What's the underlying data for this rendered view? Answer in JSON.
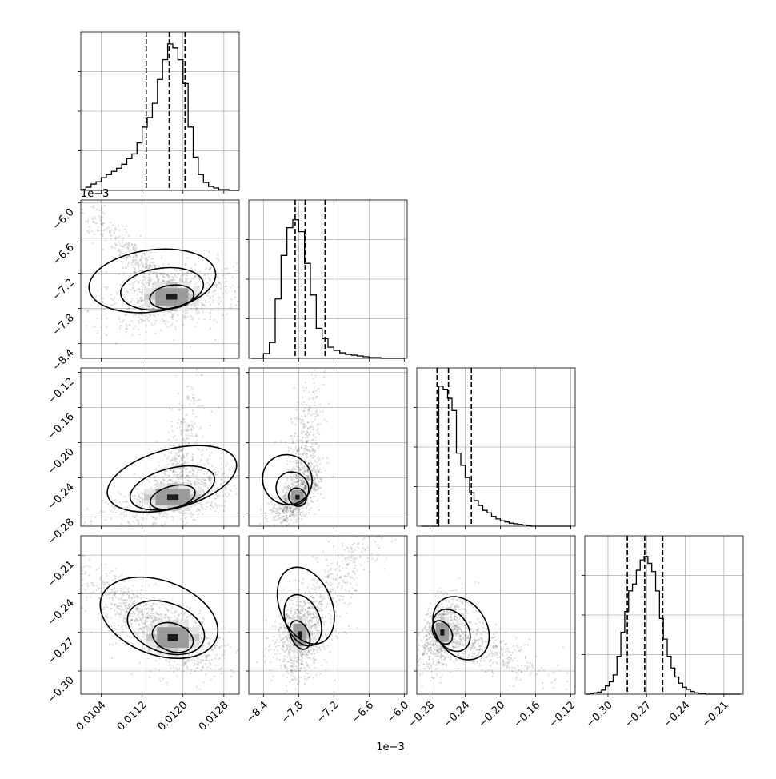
{
  "chart_data": {
    "type": "corner",
    "parameters": [
      {
        "range": [
          0.01,
          0.0131
        ],
        "ticks": [
          0.0104,
          0.0112,
          0.012,
          0.0128
        ],
        "tick_labels": [
          "0.0104",
          "0.0112",
          "0.0120",
          "0.0128"
        ],
        "quantiles": [
          0.01128,
          0.01173,
          0.01204
        ]
      },
      {
        "range": [
          -8.65,
          -5.95
        ],
        "ticks": [
          -8.4,
          -7.8,
          -7.2,
          -6.6,
          -6.0
        ],
        "tick_labels": [
          "−8.4",
          "−7.8",
          "−7.2",
          "−6.6",
          "−6.0"
        ],
        "offset_label": "1e−3",
        "quantiles": [
          -7.86,
          -7.69,
          -7.35
        ]
      },
      {
        "range": [
          -0.295,
          -0.115
        ],
        "ticks": [
          -0.28,
          -0.24,
          -0.2,
          -0.16,
          -0.12
        ],
        "tick_labels": [
          "−0.28",
          "−0.24",
          "−0.20",
          "−0.16",
          "−0.12"
        ],
        "quantiles": [
          -0.272,
          -0.259,
          -0.233
        ]
      },
      {
        "range": [
          -0.318,
          -0.195
        ],
        "ticks": [
          -0.3,
          -0.27,
          -0.24,
          -0.21
        ],
        "tick_labels": [
          "−0.30",
          "−0.27",
          "−0.24",
          "−0.21"
        ],
        "quantiles": [
          -0.285,
          -0.2715,
          -0.2575
        ]
      }
    ],
    "histograms": [
      {
        "param": 0,
        "bin_edges": [
          0.01,
          0.0101,
          0.0102,
          0.0103,
          0.0104,
          0.0105,
          0.0106,
          0.0107,
          0.0108,
          0.0109,
          0.011,
          0.0111,
          0.0112,
          0.0113,
          0.0114,
          0.0115,
          0.0116,
          0.0117,
          0.0118,
          0.0119,
          0.012,
          0.0121,
          0.0122,
          0.0123,
          0.0124,
          0.0125,
          0.0126,
          0.0127,
          0.0128,
          0.0129,
          0.013,
          0.0131
        ],
        "counts": [
          1,
          4,
          8,
          11,
          16,
          20,
          24,
          28,
          33,
          40,
          46,
          60,
          80,
          92,
          110,
          140,
          165,
          185,
          180,
          165,
          135,
          80,
          42,
          20,
          10,
          5,
          3,
          1,
          1,
          0,
          0
        ],
        "ymax": 200
      },
      {
        "param": 1,
        "bin_edges": [
          -8.6,
          -8.5,
          -8.4,
          -8.3,
          -8.2,
          -8.1,
          -8.0,
          -7.9,
          -7.8,
          -7.7,
          -7.6,
          -7.5,
          -7.4,
          -7.3,
          -7.2,
          -7.1,
          -7.0,
          -6.9,
          -6.8,
          -6.7,
          -6.6,
          -6.5,
          -6.4,
          -6.3,
          -6.2,
          -6.1,
          -6.0
        ],
        "counts": [
          0,
          0,
          6,
          20,
          75,
          130,
          165,
          175,
          160,
          120,
          80,
          38,
          25,
          14,
          10,
          7,
          5,
          4,
          3,
          2,
          1,
          1,
          0,
          0,
          0,
          0
        ],
        "ymax": 200
      },
      {
        "param": 2,
        "bin_edges": [
          -0.29,
          -0.285,
          -0.28,
          -0.275,
          -0.27,
          -0.265,
          -0.26,
          -0.255,
          -0.25,
          -0.245,
          -0.24,
          -0.235,
          -0.23,
          -0.225,
          -0.22,
          -0.215,
          -0.21,
          -0.205,
          -0.2,
          -0.195,
          -0.19,
          -0.185,
          -0.18,
          -0.175,
          -0.17,
          -0.165,
          -0.16,
          -0.155,
          -0.15,
          -0.145,
          -0.14,
          -0.135,
          -0.13,
          -0.125,
          -0.12
        ],
        "counts": [
          0,
          0,
          0,
          0,
          230,
          225,
          210,
          190,
          120,
          100,
          80,
          55,
          42,
          34,
          26,
          22,
          16,
          12,
          9,
          7,
          5,
          4,
          3,
          2,
          1,
          0,
          0,
          0,
          0,
          0,
          0,
          0,
          0,
          0
        ],
        "ymax": 260
      },
      {
        "param": 3,
        "bin_edges": [
          -0.317,
          -0.314,
          -0.311,
          -0.308,
          -0.305,
          -0.302,
          -0.299,
          -0.296,
          -0.293,
          -0.29,
          -0.287,
          -0.284,
          -0.281,
          -0.278,
          -0.275,
          -0.272,
          -0.269,
          -0.266,
          -0.263,
          -0.26,
          -0.257,
          -0.254,
          -0.251,
          -0.248,
          -0.245,
          -0.242,
          -0.239,
          -0.236,
          -0.233,
          -0.23,
          -0.227,
          -0.224,
          -0.221,
          -0.218,
          -0.215,
          -0.212,
          -0.209,
          -0.206,
          -0.203,
          -0.2,
          -0.197
        ],
        "counts": [
          0,
          1,
          2,
          3,
          6,
          12,
          18,
          28,
          55,
          90,
          120,
          150,
          160,
          180,
          195,
          200,
          190,
          178,
          150,
          110,
          80,
          55,
          38,
          25,
          16,
          10,
          7,
          4,
          2,
          1,
          1,
          0,
          0,
          0,
          0,
          0,
          0,
          0,
          0,
          0
        ],
        "ymax": 230
      }
    ],
    "contour_panels": [
      {
        "row": 1,
        "col": 0,
        "peak": [
          0.01178,
          -7.6
        ],
        "spread": [
          0.00048,
          0.22
        ],
        "rho": 0.25,
        "tail": {
          "dir": [
            -0.0014,
            1.3
          ],
          "len": 1.0,
          "width": [
            0.00018,
            0.1
          ]
        }
      },
      {
        "row": 2,
        "col": 0,
        "peak": [
          0.0118,
          -0.262
        ],
        "spread": [
          0.0005,
          0.014
        ],
        "rho": 0.55,
        "tail": {
          "dir": [
            0.00032,
            0.085
          ],
          "len": 1.0,
          "width": [
            0.0002,
            0.012
          ]
        }
      },
      {
        "row": 2,
        "col": 1,
        "peak": [
          -7.82,
          -0.262
        ],
        "spread": [
          0.16,
          0.012
        ],
        "rho": 0.7,
        "tail": {
          "dir": [
            0.2,
            0.095
          ],
          "len": 1.0,
          "width": [
            0.14,
            0.014
          ]
        }
      },
      {
        "row": 3,
        "col": 0,
        "peak": [
          0.0118,
          -0.274
        ],
        "spread": [
          0.00046,
          0.012
        ],
        "rho": -0.55,
        "tail": {
          "dir": [
            -0.0016,
            0.045
          ],
          "len": 1.0,
          "width": [
            0.0002,
            0.008
          ]
        }
      },
      {
        "row": 3,
        "col": 1,
        "peak": [
          -7.78,
          -0.272
        ],
        "spread": [
          0.17,
          0.013
        ],
        "rho": 0.25,
        "tail": {
          "dir": [
            1.2,
            0.08
          ],
          "len": 1.0,
          "width": [
            0.2,
            0.012
          ]
        }
      },
      {
        "row": 3,
        "col": 2,
        "peak": [
          -0.266,
          -0.27
        ],
        "spread": [
          0.011,
          0.011
        ],
        "rho": 0.45,
        "tail": {
          "dir": [
            0.085,
            -0.022
          ],
          "len": 1.0,
          "width": [
            0.01,
            0.008
          ]
        }
      }
    ],
    "grid": true,
    "x_offset_label": "1e−3"
  }
}
